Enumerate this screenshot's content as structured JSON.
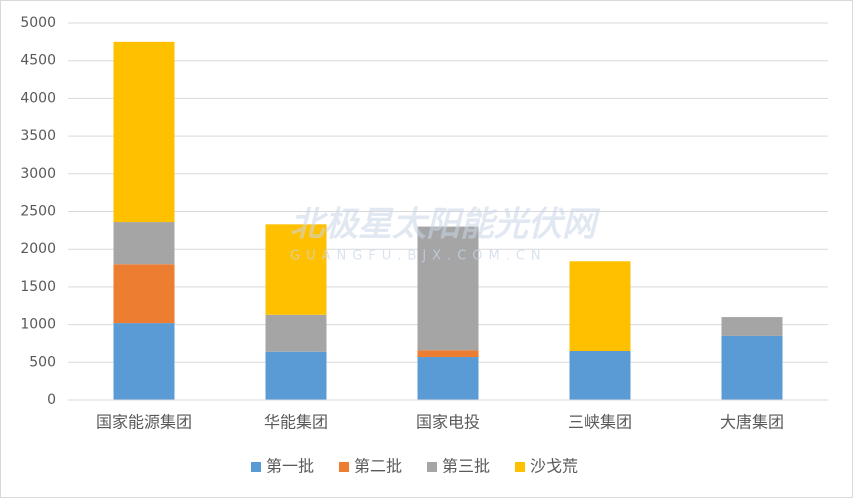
{
  "chart_data": {
    "type": "stacked_bar",
    "categories": [
      "国家能源集团",
      "华能集团",
      "国家电投",
      "三峡集团",
      "大唐集团"
    ],
    "series": [
      {
        "name": "第一批",
        "color": "#5b9bd5",
        "values": [
          1020,
          640,
          570,
          650,
          850
        ]
      },
      {
        "name": "第二批",
        "color": "#ed7d31",
        "values": [
          780,
          0,
          90,
          0,
          0
        ]
      },
      {
        "name": "第三批",
        "color": "#a5a5a5",
        "values": [
          560,
          490,
          1640,
          0,
          250
        ]
      },
      {
        "name": "沙戈荒",
        "color": "#ffc000",
        "values": [
          2390,
          1200,
          0,
          1190,
          0
        ]
      }
    ],
    "ylim": [
      0,
      5000
    ],
    "yticks": [
      0,
      500,
      1000,
      1500,
      2000,
      2500,
      3000,
      3500,
      4000,
      4500,
      5000
    ],
    "grid": true,
    "legend": "bottom",
    "watermark": "北极星太阳能光伏网",
    "watermark_sub": "GUANGFU.BJX.COM.CN"
  }
}
